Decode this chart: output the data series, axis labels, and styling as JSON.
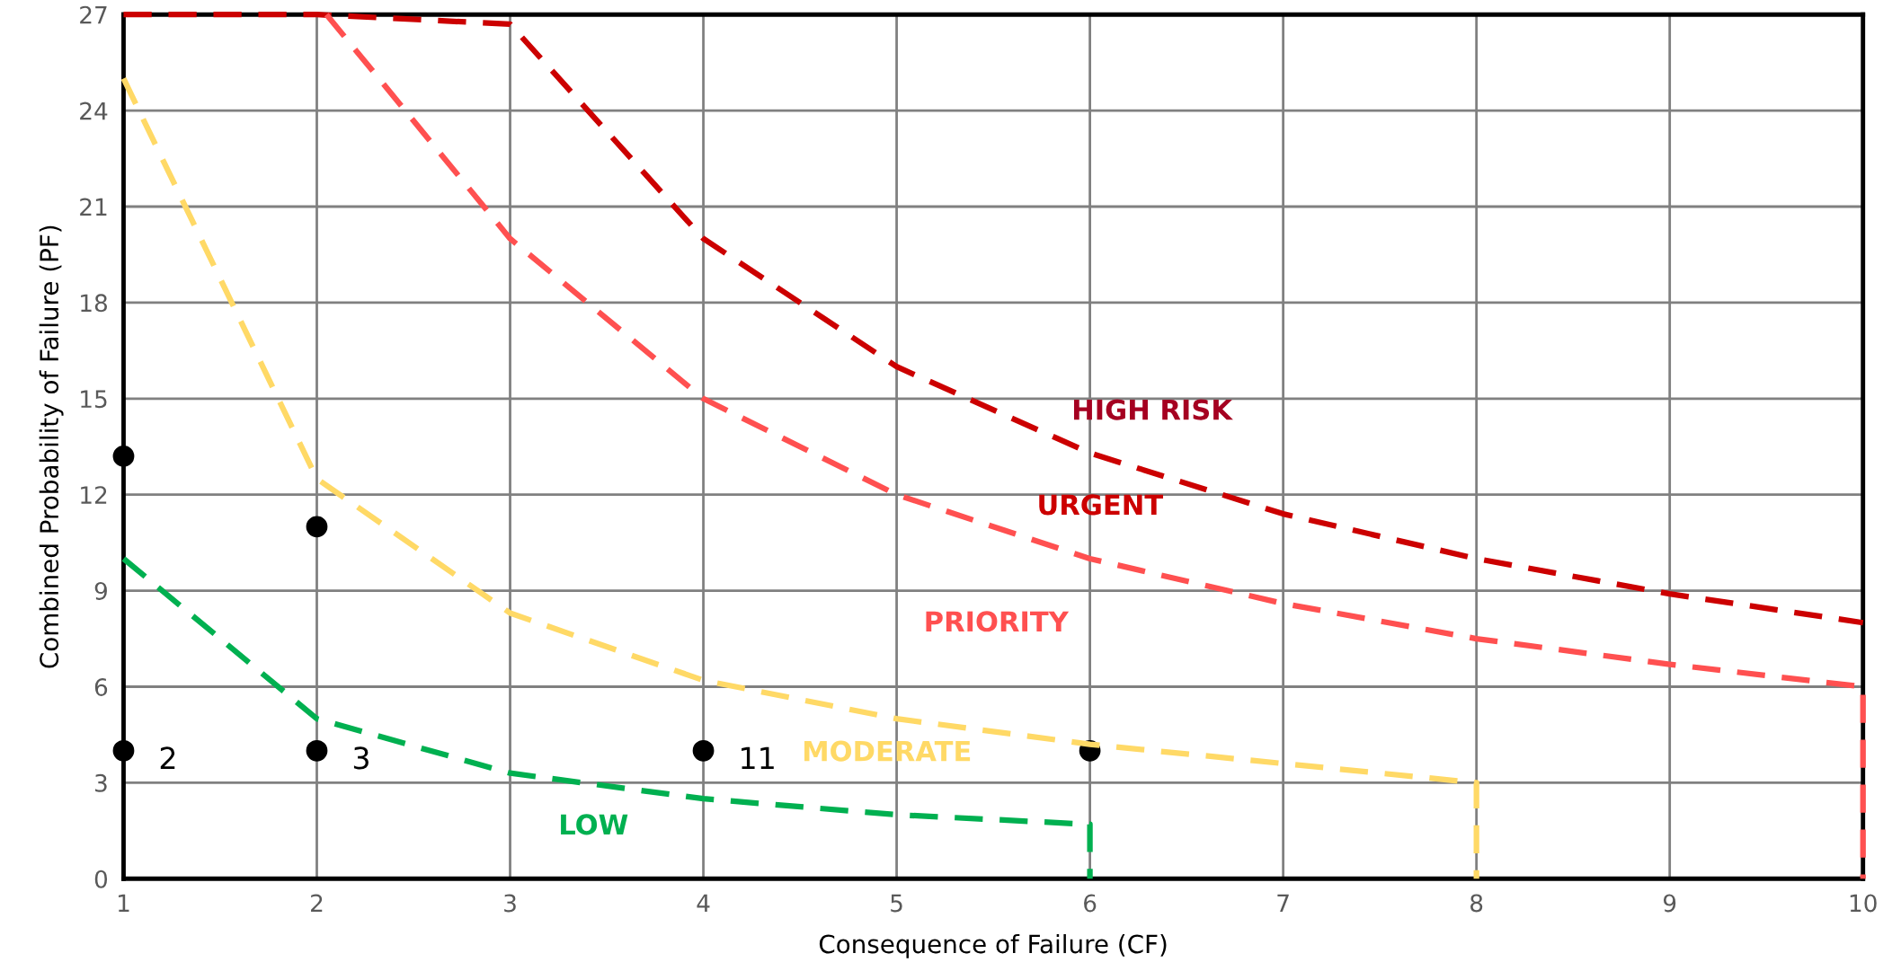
{
  "chart_data": {
    "type": "line",
    "xlabel": "Consequence of Failure (CF)",
    "ylabel": "Combined Probability of Failure (PF)",
    "xlim": [
      1,
      10
    ],
    "xticks": [
      1,
      2,
      3,
      4,
      5,
      6,
      7,
      8,
      9,
      10
    ],
    "ylim": [
      0,
      27
    ],
    "yticks": [
      0,
      3,
      6,
      9,
      12,
      15,
      18,
      21,
      24,
      27
    ],
    "grid": true,
    "line_style": "dashed",
    "marker": "none",
    "series": [
      {
        "name": "URGENT",
        "color": "#cc0000",
        "x": [
          1,
          2,
          3,
          4,
          5,
          6,
          7,
          8,
          9,
          10
        ],
        "values": [
          27,
          27,
          26.7,
          20,
          16,
          13.3,
          11.4,
          10,
          8.9,
          8
        ]
      },
      {
        "name": "PRIORITY",
        "color": "#ff5050",
        "x": [
          2.05,
          3,
          4,
          5,
          6,
          7,
          8,
          9,
          10,
          10
        ],
        "values": [
          27,
          20,
          15,
          12,
          10,
          8.6,
          7.5,
          6.7,
          6,
          0
        ]
      },
      {
        "name": "MODERATE",
        "color": "#ffd966",
        "x": [
          1,
          2,
          3,
          4,
          5,
          6,
          7,
          8,
          8
        ],
        "values": [
          25,
          12.5,
          8.3,
          6.2,
          5,
          4.2,
          3.6,
          3,
          0
        ]
      },
      {
        "name": "LOW",
        "color": "#00b050",
        "x": [
          1,
          2,
          3,
          4,
          5,
          6,
          6
        ],
        "values": [
          10,
          5,
          3.3,
          2.5,
          2,
          1.7,
          0
        ]
      },
      {
        "type": "scatter",
        "marker": "circle",
        "x": [
          1,
          2,
          1,
          2,
          4,
          6
        ],
        "values": [
          13.2,
          11,
          4,
          4,
          4,
          4
        ],
        "colors": [
          "#000000",
          "#000000",
          "#000000",
          "#000000",
          "#000000",
          "#000000"
        ]
      }
    ],
    "annotations": [
      {
        "text": "2",
        "x": 1,
        "y": 4
      },
      {
        "text": "3",
        "x": 2,
        "y": 4
      },
      {
        "text": "11",
        "x": 4,
        "y": 4
      },
      "HIGH RISK"
    ]
  }
}
